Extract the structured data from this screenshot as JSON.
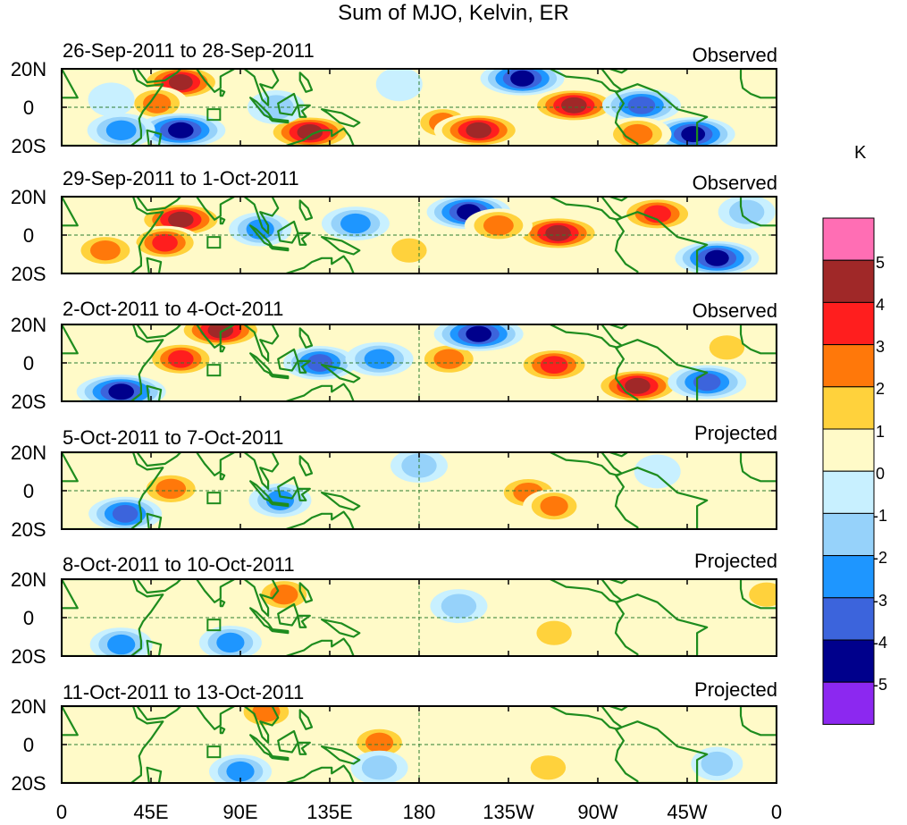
{
  "title": "Sum of MJO, Kelvin, ER",
  "panels": [
    {
      "period": "26-Sep-2011 to 28-Sep-2011",
      "kind": "Observed"
    },
    {
      "period": "29-Sep-2011 to 1-Oct-2011",
      "kind": "Observed"
    },
    {
      "period": "2-Oct-2011 to 4-Oct-2011",
      "kind": "Observed"
    },
    {
      "period": "5-Oct-2011 to 7-Oct-2011",
      "kind": "Projected"
    },
    {
      "period": "8-Oct-2011 to 10-Oct-2011",
      "kind": "Projected"
    },
    {
      "period": "11-Oct-2011 to 13-Oct-2011",
      "kind": "Projected"
    }
  ],
  "y_labels": {
    "north": "20N",
    "equator": "0",
    "south": "20S"
  },
  "x_labels": [
    "0",
    "45E",
    "90E",
    "135E",
    "180",
    "135W",
    "90W",
    "45W",
    "0"
  ],
  "colorbar": {
    "unit": "K",
    "labels": [
      "5",
      "4",
      "3",
      "2",
      "1",
      "0",
      "-1",
      "-2",
      "-3",
      "-4",
      "-5"
    ],
    "colors": [
      "#ff6eb4",
      "#a02828",
      "#ff1e1e",
      "#ff780a",
      "#ffd23c",
      "#fffac8",
      "#c8f0ff",
      "#96d2fa",
      "#1e96ff",
      "#3c64dc",
      "#00008c",
      "#8c28f0"
    ]
  },
  "map_colors": {
    "coast": "#1e8c1e",
    "ocean": "#ffffff"
  },
  "chart_data": [
    {
      "type": "heatmap",
      "variable": "Sum of MJO, Kelvin, ER",
      "units": "K",
      "period": "26-Sep-2011 to 28-Sep-2011",
      "source": "Observed",
      "lat_range": [
        -20,
        20
      ],
      "lon_range": [
        0,
        360
      ],
      "anomalies": [
        {
          "lon": 60,
          "lat": 13,
          "value": 4.5
        },
        {
          "lon": 48,
          "lat": 2,
          "value": 2.5
        },
        {
          "lon": 60,
          "lat": -12,
          "value": -5
        },
        {
          "lon": 30,
          "lat": -12,
          "value": -3
        },
        {
          "lon": 125,
          "lat": -13,
          "value": 5
        },
        {
          "lon": 108,
          "lat": 0,
          "value": -2
        },
        {
          "lon": 170,
          "lat": 12,
          "value": -1
        },
        {
          "lon": 192,
          "lat": -8,
          "value": 2.5
        },
        {
          "lon": 210,
          "lat": -12,
          "value": 5
        },
        {
          "lon": 232,
          "lat": 15,
          "value": -4.5
        },
        {
          "lon": 258,
          "lat": 1,
          "value": 5
        },
        {
          "lon": 292,
          "lat": 1,
          "value": -4
        },
        {
          "lon": 318,
          "lat": -14,
          "value": -4.5
        },
        {
          "lon": 290,
          "lat": -14,
          "value": 3
        },
        {
          "lon": 25,
          "lat": 4,
          "value": -1
        }
      ]
    },
    {
      "type": "heatmap",
      "variable": "Sum of MJO, Kelvin, ER",
      "units": "K",
      "period": "29-Sep-2011 to 1-Oct-2011",
      "source": "Observed",
      "lat_range": [
        -20,
        20
      ],
      "lon_range": [
        0,
        360
      ],
      "anomalies": [
        {
          "lon": 60,
          "lat": 8,
          "value": 5
        },
        {
          "lon": 52,
          "lat": -4,
          "value": 3.5
        },
        {
          "lon": 22,
          "lat": -8,
          "value": 3
        },
        {
          "lon": 100,
          "lat": 3,
          "value": -2.5
        },
        {
          "lon": 148,
          "lat": 6,
          "value": -3
        },
        {
          "lon": 175,
          "lat": -8,
          "value": 2
        },
        {
          "lon": 205,
          "lat": 12,
          "value": -4.5
        },
        {
          "lon": 250,
          "lat": 1,
          "value": 5
        },
        {
          "lon": 220,
          "lat": 5,
          "value": 3
        },
        {
          "lon": 300,
          "lat": 11,
          "value": 4
        },
        {
          "lon": 330,
          "lat": -12,
          "value": -4.5
        },
        {
          "lon": 345,
          "lat": 12,
          "value": -2
        }
      ]
    },
    {
      "type": "heatmap",
      "variable": "Sum of MJO, Kelvin, ER",
      "units": "K",
      "period": "2-Oct-2011 to 4-Oct-2011",
      "source": "Observed",
      "lat_range": [
        -20,
        20
      ],
      "lon_range": [
        0,
        360
      ],
      "anomalies": [
        {
          "lon": 60,
          "lat": 2,
          "value": 3.5
        },
        {
          "lon": 80,
          "lat": 17,
          "value": 5
        },
        {
          "lon": 30,
          "lat": -15,
          "value": -5
        },
        {
          "lon": 130,
          "lat": 0,
          "value": -3.5
        },
        {
          "lon": 160,
          "lat": 2,
          "value": -3
        },
        {
          "lon": 195,
          "lat": 2,
          "value": 3
        },
        {
          "lon": 210,
          "lat": 15,
          "value": -5
        },
        {
          "lon": 248,
          "lat": -1,
          "value": 4
        },
        {
          "lon": 290,
          "lat": -12,
          "value": 5
        },
        {
          "lon": 325,
          "lat": -10,
          "value": -4
        },
        {
          "lon": 335,
          "lat": 8,
          "value": 2
        }
      ]
    },
    {
      "type": "heatmap",
      "variable": "Sum of MJO, Kelvin, ER",
      "units": "K",
      "period": "5-Oct-2011 to 7-Oct-2011",
      "source": "Projected",
      "lat_range": [
        -20,
        20
      ],
      "lon_range": [
        0,
        360
      ],
      "anomalies": [
        {
          "lon": 55,
          "lat": 1,
          "value": 3
        },
        {
          "lon": 32,
          "lat": -12,
          "value": -3.5
        },
        {
          "lon": 110,
          "lat": -5,
          "value": -2.5
        },
        {
          "lon": 180,
          "lat": 13,
          "value": -2
        },
        {
          "lon": 235,
          "lat": -1,
          "value": 3
        },
        {
          "lon": 248,
          "lat": -8,
          "value": 2.5
        },
        {
          "lon": 300,
          "lat": 10,
          "value": -1
        }
      ]
    },
    {
      "type": "heatmap",
      "variable": "Sum of MJO, Kelvin, ER",
      "units": "K",
      "period": "8-Oct-2011 to 10-Oct-2011",
      "source": "Projected",
      "lat_range": [
        -20,
        20
      ],
      "lon_range": [
        0,
        360
      ],
      "anomalies": [
        {
          "lon": 30,
          "lat": -14,
          "value": -2.5
        },
        {
          "lon": 85,
          "lat": -13,
          "value": -2.5
        },
        {
          "lon": 112,
          "lat": 12,
          "value": 2.5
        },
        {
          "lon": 200,
          "lat": 6,
          "value": -2
        },
        {
          "lon": 248,
          "lat": -8,
          "value": 2
        },
        {
          "lon": 355,
          "lat": 12,
          "value": 2
        }
      ]
    },
    {
      "type": "heatmap",
      "variable": "Sum of MJO, Kelvin, ER",
      "units": "K",
      "period": "11-Oct-2011 to 13-Oct-2011",
      "source": "Projected",
      "lat_range": [
        -20,
        20
      ],
      "lon_range": [
        0,
        360
      ],
      "anomalies": [
        {
          "lon": 103,
          "lat": 17,
          "value": 2.5
        },
        {
          "lon": 90,
          "lat": -14,
          "value": -2.5
        },
        {
          "lon": 160,
          "lat": 1,
          "value": 2.5
        },
        {
          "lon": 160,
          "lat": -12,
          "value": -2
        },
        {
          "lon": 245,
          "lat": -12,
          "value": 2
        },
        {
          "lon": 330,
          "lat": -10,
          "value": -1.5
        }
      ]
    }
  ]
}
